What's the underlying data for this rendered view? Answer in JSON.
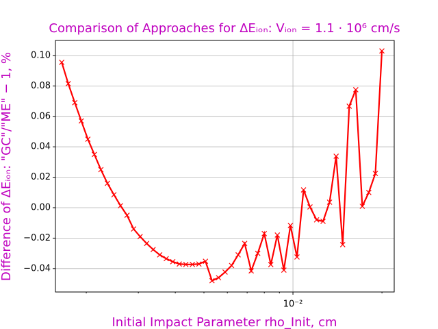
{
  "chart_data": {
    "type": "line",
    "title": "Comparison of Approaches for ΔEᵢₒₙ: Vᵢₒₙ = 1.1 · 10⁶ cm/s",
    "x_label": "Initial Impact Parameter rho_Init, cm",
    "y_label": "Difference of ΔEᵢₒₙ: \"GC\"/\"ME\" − 1, %",
    "x": [
      0.001652,
      0.001738,
      0.001829,
      0.001924,
      0.002025,
      0.00213,
      0.002241,
      0.002358,
      0.002481,
      0.002611,
      0.002747,
      0.002891,
      0.003042,
      0.0032,
      0.003367,
      0.003543,
      0.003728,
      0.003923,
      0.004128,
      0.004343,
      0.00457,
      0.004809,
      0.00506,
      0.005324,
      0.005602,
      0.005895,
      0.006202,
      0.006526,
      0.006867,
      0.007225,
      0.007602,
      0.007999,
      0.008417,
      0.008856,
      0.009318,
      0.009805,
      0.01032,
      0.01086,
      0.01142,
      0.01202,
      0.01264,
      0.0133,
      0.014,
      0.01473,
      0.0155,
      0.01631,
      0.01716,
      0.01805,
      0.019,
      0.01999
    ],
    "values": [
      0.0955,
      0.0815,
      0.069,
      0.057,
      0.045,
      0.035,
      0.025,
      0.016,
      0.0085,
      0.0013,
      -0.005,
      -0.014,
      -0.019,
      -0.0235,
      -0.0275,
      -0.031,
      -0.0335,
      -0.0355,
      -0.037,
      -0.0373,
      -0.0373,
      -0.037,
      -0.0352,
      -0.048,
      -0.046,
      -0.0423,
      -0.038,
      -0.031,
      -0.0235,
      -0.0415,
      -0.03,
      -0.017,
      -0.0374,
      -0.018,
      -0.041,
      -0.0117,
      -0.0324,
      0.0117,
      0.0005,
      -0.008,
      -0.009,
      0.0036,
      0.0338,
      -0.0243,
      0.0667,
      0.0775,
      0.0009,
      0.01,
      0.0225,
      0.103
    ],
    "color": "#ff0000",
    "marker": "x",
    "x_scale": "log",
    "xlim": [
      0.001573,
      0.022
    ],
    "xticks": [
      {
        "value": 0.01,
        "label": "10⁻²"
      }
    ],
    "xminorticks": [
      0.002,
      0.003,
      0.004,
      0.005,
      0.006,
      0.007,
      0.008,
      0.009,
      0.02
    ],
    "ylim": [
      -0.0554,
      0.1099
    ],
    "yticks": [
      {
        "value": -0.04,
        "label": "−0.04"
      },
      {
        "value": -0.02,
        "label": "−0.02"
      },
      {
        "value": 0,
        "label": "0.00"
      },
      {
        "value": 0.02,
        "label": "0.02"
      },
      {
        "value": 0.04,
        "label": "0.04"
      },
      {
        "value": 0.06,
        "label": "0.06"
      },
      {
        "value": 0.08,
        "label": "0.08"
      },
      {
        "value": 0.1,
        "label": "0.10"
      }
    ],
    "grid": true
  }
}
